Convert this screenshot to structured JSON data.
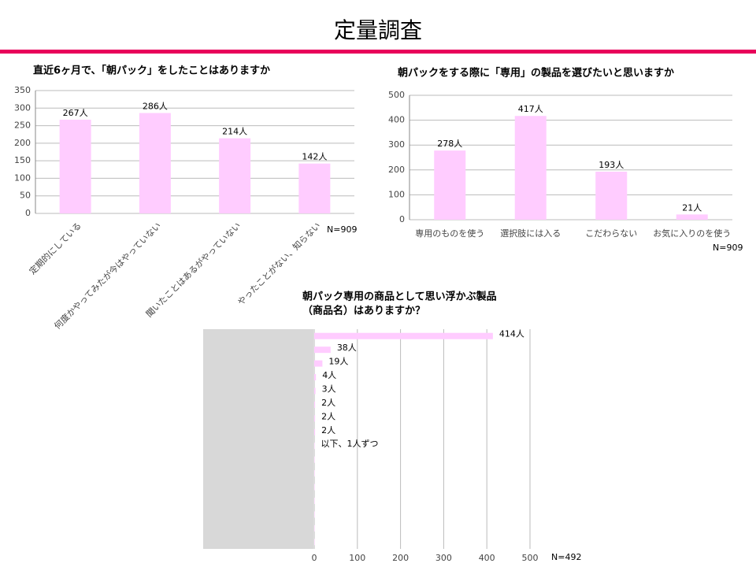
{
  "title": "定量調査",
  "chart_data": [
    {
      "type": "bar",
      "title": "直近6ヶ月で、「朝パック」をしたことはありますか",
      "categories": [
        "定期的にしている",
        "何度かやってみたが今はやっていない",
        "聞いたことはあるがやっていない",
        "やったことがない、知らない"
      ],
      "values": [
        267,
        286,
        214,
        142
      ],
      "value_labels": [
        "267人",
        "286人",
        "214人",
        "142人"
      ],
      "color": "#ffccff",
      "ylim": [
        0,
        350
      ],
      "yticks": [
        0,
        50,
        100,
        150,
        200,
        250,
        300,
        350
      ],
      "grid": true,
      "note": "N=909"
    },
    {
      "type": "bar",
      "title": "朝パックをする際に「専用」の製品を選びたいと思いますか",
      "categories": [
        "専用のものを使う",
        "選択肢には入る",
        "こだわらない",
        "お気に入りのを使う"
      ],
      "values": [
        278,
        417,
        193,
        21
      ],
      "value_labels": [
        "278人",
        "417人",
        "193人",
        "21人"
      ],
      "color": "#ffccff",
      "ylim": [
        0,
        500
      ],
      "yticks": [
        0,
        100,
        200,
        300,
        400,
        500
      ],
      "grid": true,
      "note": "N=909"
    },
    {
      "type": "barh",
      "title": [
        "朝パック専用の商品として思い浮かぶ製品",
        "（商品名）はありますか？"
      ],
      "categories": [
        null,
        null,
        null,
        null,
        null,
        null,
        null,
        null,
        null,
        null,
        null,
        null,
        null,
        null,
        null,
        null
      ],
      "values": [
        414,
        38,
        19,
        4,
        3,
        2,
        2,
        2,
        1,
        1,
        1,
        1,
        1,
        1,
        1,
        1
      ],
      "value_labels": [
        "414人",
        "38人",
        "19人",
        "4人",
        "3人",
        "2人",
        "2人",
        "2人",
        "以下、1人ずつ",
        null,
        null,
        null,
        null,
        null,
        null,
        null
      ],
      "color": "#ffccff",
      "xlim": [
        0,
        500
      ],
      "xticks": [
        0,
        100,
        200,
        300,
        400,
        500
      ],
      "grid": true,
      "note": "N=492"
    }
  ]
}
